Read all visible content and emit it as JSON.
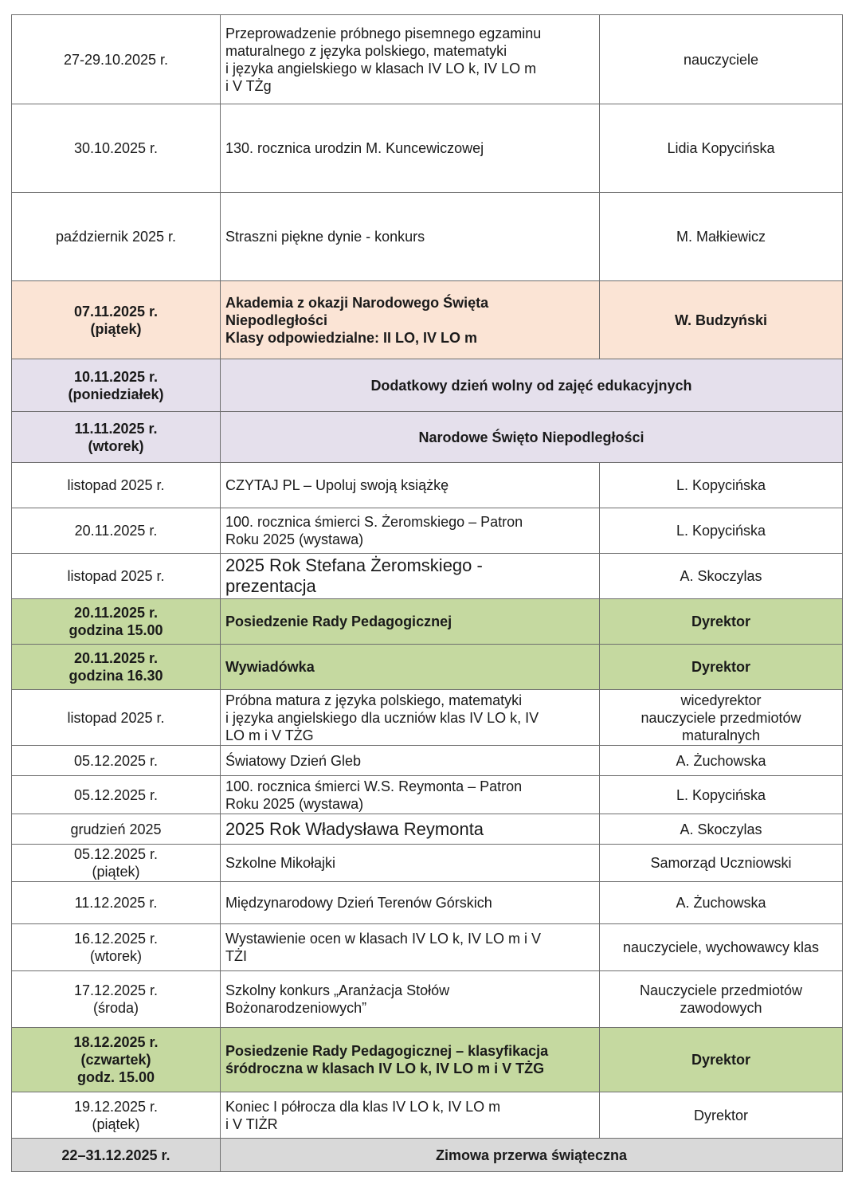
{
  "colors": {
    "peach": "#fbe4d5",
    "lavender": "#e5e0ec",
    "green": "#c5d9a0",
    "gray": "#d9d9d9"
  },
  "rows": [
    {
      "date": "27-29.10.2025 r.",
      "event": "Przeprowadzenie próbnego pisemnego egzaminu\nmaturalnego z języka polskiego, matematyki\ni języka angielskiego w klasach IV LO k, IV LO m\ni V TŻg",
      "person": "nauczyciele",
      "style": "",
      "h": 112
    },
    {
      "date": "30.10.2025 r.",
      "event": "130. rocznica urodzin M. Kuncewiczowej",
      "person": "Lidia Kopycińska",
      "style": "",
      "h": 111
    },
    {
      "date": "październik 2025 r.",
      "event": "Straszni piękne dynie - konkurs",
      "person": "M. Małkiewicz",
      "style": "",
      "h": 111
    },
    {
      "date": "07.11.2025 r.\n(piątek)",
      "event": "Akademia z okazji Narodowego Święta\nNiepodległości\nKlasy odpowiedzialne: II LO, IV LO m",
      "person": "W. Budzyński",
      "style": "peach bold",
      "h": 98
    },
    {
      "date": "10.11.2025 r.\n(poniedziałek)",
      "event": "Dodatkowy dzień wolny od zajęć edukacyjnych",
      "person": null,
      "style": "lav bold",
      "h": 66
    },
    {
      "date": "11.11.2025 r.\n(wtorek)",
      "event": "Narodowe Święto Niepodległości",
      "person": null,
      "style": "lav bold",
      "h": 64
    },
    {
      "date": "listopad 2025 r.",
      "event": "CZYTAJ PL – Upoluj swoją książkę",
      "person": "L. Kopycińska",
      "style": "",
      "h": 57
    },
    {
      "date": "20.11.2025 r.",
      "event": "100. rocznica śmierci S. Żeromskiego – Patron\nRoku 2025 (wystawa)",
      "person": "L. Kopycińska",
      "style": "",
      "h": 57
    },
    {
      "date": "listopad 2025 r.",
      "event": "2025 Rok Stefana Żeromskiego -\nprezentacja",
      "person": "A. Skoczylas",
      "style": "",
      "big": true,
      "h": 57
    },
    {
      "date": "20.11.2025 r.\ngodzina 15.00",
      "event": "Posiedzenie Rady Pedagogicznej",
      "person": "Dyrektor",
      "style": "green bold",
      "h": 57
    },
    {
      "date": "20.11.2025 r.\ngodzina 16.30",
      "event": "Wywiadówka",
      "person": "Dyrektor",
      "style": "green bold",
      "h": 57
    },
    {
      "date": "listopad 2025 r.",
      "event": "Próbna matura z języka polskiego, matematyki\ni języka angielskiego dla uczniów klas IV LO k, IV\nLO m i V TŻG",
      "person": "wicedyrektor\nnauczyciele przedmiotów\nmaturalnych",
      "style": "",
      "h": 70
    },
    {
      "date": "05.12.2025 r.",
      "event": "Światowy Dzień Gleb",
      "person": "A. Żuchowska",
      "style": "",
      "h": 38
    },
    {
      "date": "05.12.2025 r.",
      "event": "100. rocznica śmierci W.S. Reymonta – Patron\nRoku 2025 (wystawa)",
      "person": "L. Kopycińska",
      "style": "",
      "h": 48
    },
    {
      "date": "grudzień 2025",
      "event": "2025 Rok Władysława Reymonta",
      "person": "A. Skoczylas",
      "style": "",
      "big": true,
      "h": 38
    },
    {
      "date": "05.12.2025 r.\n(piątek)",
      "event": "Szkolne Mikołajki",
      "person": "Samorząd Uczniowski",
      "style": "",
      "h": 47
    },
    {
      "date": "11.12.2025 r.",
      "event": "Międzynarodowy Dzień Terenów Górskich",
      "person": "A. Żuchowska",
      "style": "",
      "h": 53
    },
    {
      "date": "16.12.2025 r.\n(wtorek)",
      "event": "Wystawienie ocen w klasach IV LO k, IV LO m i V\nTŻI",
      "person": "nauczyciele, wychowawcy klas",
      "style": "",
      "h": 59
    },
    {
      "date": "17.12.2025 r.\n(środa)",
      "event": "Szkolny konkurs „Aranżacja Stołów\nBożonarodzeniowych”",
      "person": "Nauczyciele przedmiotów\nzawodowych",
      "style": "",
      "h": 71
    },
    {
      "date": "18.12.2025 r.\n(czwartek)\ngodz. 15.00",
      "event": "Posiedzenie Rady Pedagogicznej – klasyfikacja\nśródroczna w klasach IV LO k, IV LO m i V TŻG",
      "person": "Dyrektor",
      "style": "green bold",
      "h": 81
    },
    {
      "date": "19.12.2025 r.\n(piątek)",
      "event": "Koniec I półrocza dla klas IV LO k, IV LO m\ni V TIŻR",
      "person": "Dyrektor",
      "style": "",
      "h": 58
    },
    {
      "date": "22–31.12.2025 r.",
      "event": "Zimowa przerwa świąteczna",
      "person": null,
      "style": "gray bold",
      "h": 42
    }
  ]
}
